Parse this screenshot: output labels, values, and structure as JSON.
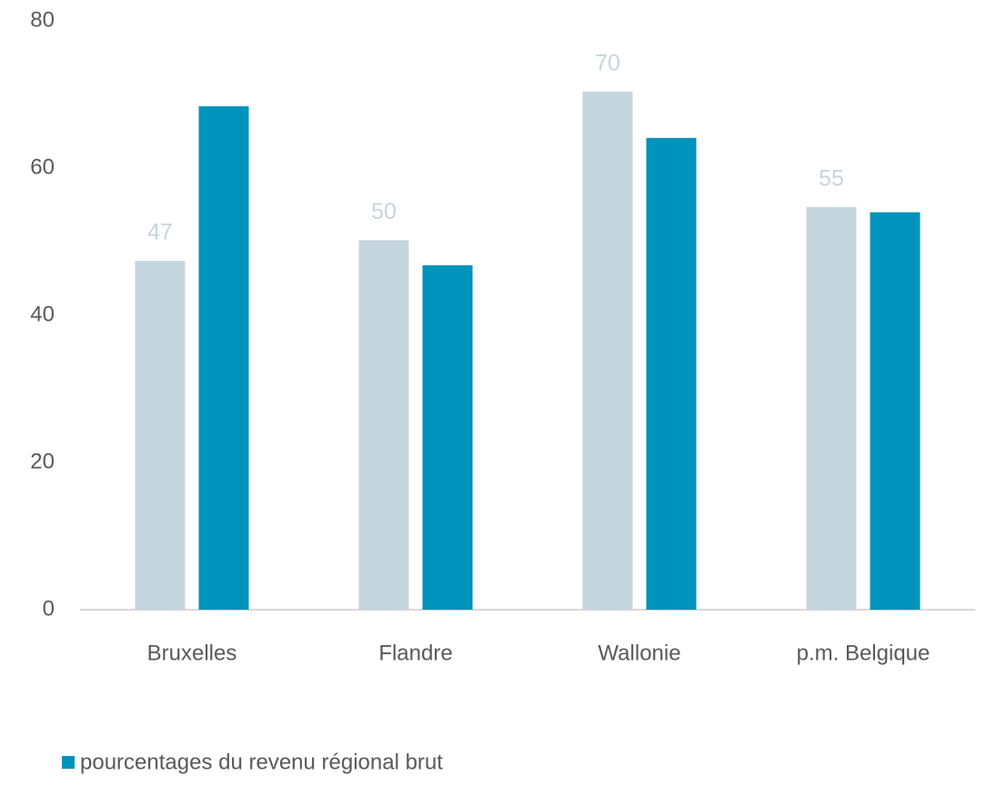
{
  "chart_data": {
    "type": "bar",
    "categories": [
      "Bruxelles",
      "Flandre",
      "Wallonie",
      "p.m. Belgique"
    ],
    "series": [
      {
        "color": "#c5d5dd",
        "values": [
          47.4,
          50.2,
          70.4,
          54.7
        ],
        "value_labels": [
          "47",
          "50",
          "70",
          "55"
        ]
      },
      {
        "name": "pourcentages du revenu régional brut",
        "color": "#0093bb",
        "values": [
          68.4,
          46.8,
          64.1,
          54.0
        ]
      }
    ],
    "ylim": [
      0,
      80
    ],
    "yticks": [
      0,
      20,
      40,
      60,
      80
    ],
    "grid": false,
    "legend": "bottom-left"
  }
}
